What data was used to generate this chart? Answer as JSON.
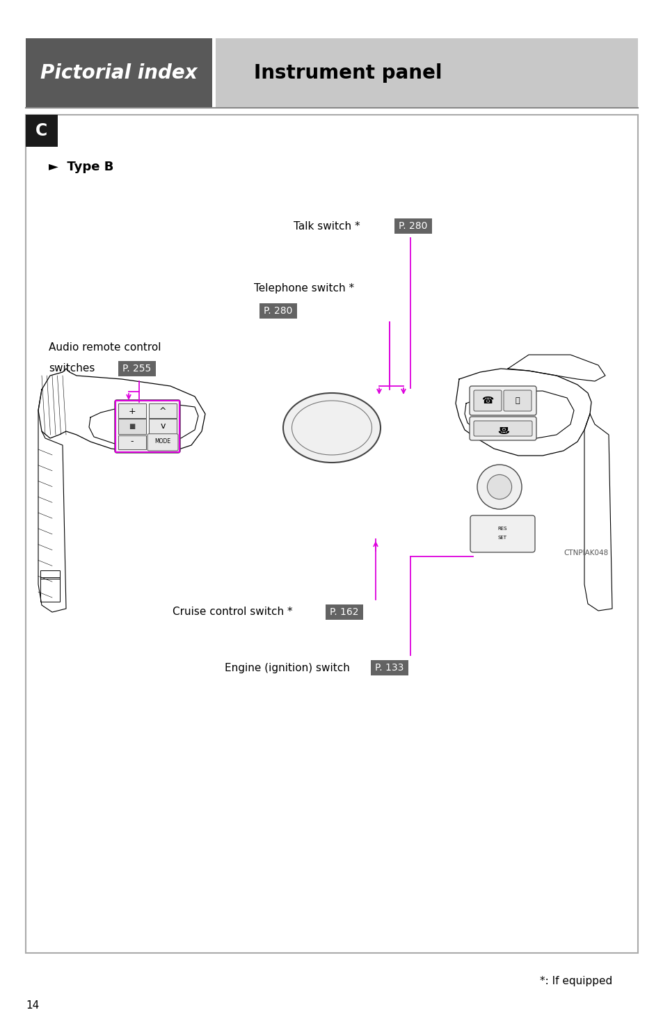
{
  "page_bg": "#ffffff",
  "outer_margin_color": "#ffffff",
  "header_left_bg": "#595959",
  "header_right_bg": "#c8c8c8",
  "header_left_text": "Pictorial index",
  "header_right_text": "Instrument panel",
  "header_left_text_color": "#ffffff",
  "header_right_text_color": "#000000",
  "section_label": "C",
  "type_label": "►  Type B",
  "page_number": "14",
  "footer_note": "*: If equipped",
  "badge_bg": "#636363",
  "badge_text_color": "#ffffff",
  "line_color": "#dd00dd",
  "ctnpiak_label": "CTNPIAK048",
  "talk_switch_label": "Talk switch *",
  "talk_switch_badge": "P. 280",
  "telephone_switch_label": "Telephone switch *",
  "telephone_switch_badge": "P. 280",
  "audio_line1": "Audio remote control",
  "audio_line2": "switches",
  "audio_badge": "P. 255",
  "cruise_label": "Cruise control switch *",
  "cruise_badge": "P. 162",
  "engine_label": "Engine (ignition) switch",
  "engine_badge": "P. 133"
}
